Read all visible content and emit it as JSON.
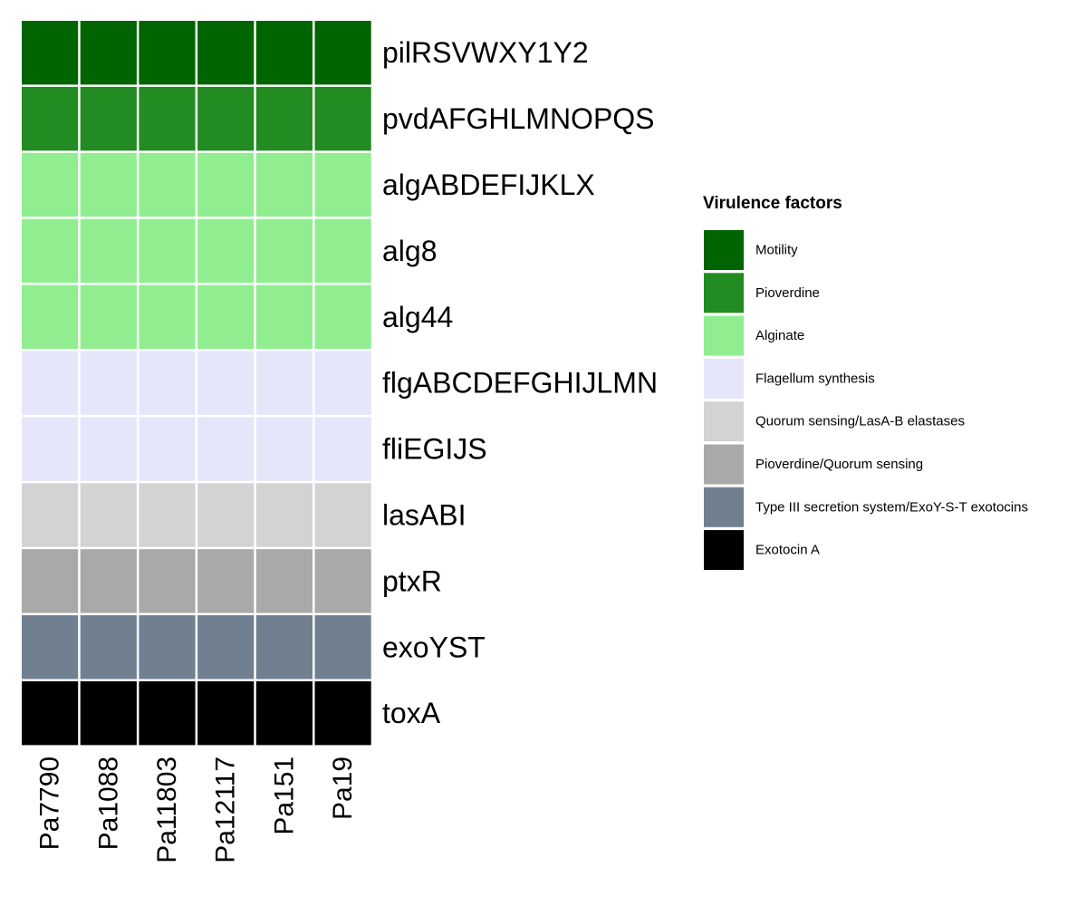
{
  "chart_data": {
    "type": "heatmap",
    "rows": [
      "pilRSVWXY1Y2",
      "pvdAFGHLMNOPQS",
      "algABDEFIJKLX",
      "alg8",
      "alg44",
      "flgABCDEFGHIJLMN",
      "fliEGIJS",
      "lasABI",
      "ptxR",
      "exoYST",
      "toxA"
    ],
    "columns": [
      "Pa7790",
      "Pa1088",
      "Pa11803",
      "Pa12117",
      "Pa151",
      "Pa19"
    ],
    "values": [
      [
        "Motility",
        "Motility",
        "Motility",
        "Motility",
        "Motility",
        "Motility"
      ],
      [
        "Pioverdine",
        "Pioverdine",
        "Pioverdine",
        "Pioverdine",
        "Pioverdine",
        "Pioverdine"
      ],
      [
        "Alginate",
        "Alginate",
        "Alginate",
        "Alginate",
        "Alginate",
        "Alginate"
      ],
      [
        "Alginate",
        "Alginate",
        "Alginate",
        "Alginate",
        "Alginate",
        "Alginate"
      ],
      [
        "Alginate",
        "Alginate",
        "Alginate",
        "Alginate",
        "Alginate",
        "Alginate"
      ],
      [
        "Flagellum synthesis",
        "Flagellum synthesis",
        "Flagellum synthesis",
        "Flagellum synthesis",
        "Flagellum synthesis",
        "Flagellum synthesis"
      ],
      [
        "Flagellum synthesis",
        "Flagellum synthesis",
        "Flagellum synthesis",
        "Flagellum synthesis",
        "Flagellum synthesis",
        "Flagellum synthesis"
      ],
      [
        "Quorum sensing/LasA-B elastases",
        "Quorum sensing/LasA-B elastases",
        "Quorum sensing/LasA-B elastases",
        "Quorum sensing/LasA-B elastases",
        "Quorum sensing/LasA-B elastases",
        "Quorum sensing/LasA-B elastases"
      ],
      [
        "Pioverdine/Quorum sensing",
        "Pioverdine/Quorum sensing",
        "Pioverdine/Quorum sensing",
        "Pioverdine/Quorum sensing",
        "Pioverdine/Quorum sensing",
        "Pioverdine/Quorum sensing"
      ],
      [
        "Type III secretion system/ExoY-S-T exotocins",
        "Type III secretion system/ExoY-S-T exotocins",
        "Type III secretion system/ExoY-S-T exotocins",
        "Type III secretion system/ExoY-S-T exotocins",
        "Type III secretion system/ExoY-S-T exotocins",
        "Type III secretion system/ExoY-S-T exotocins"
      ],
      [
        "Exotocin A",
        "Exotocin A",
        "Exotocin A",
        "Exotocin A",
        "Exotocin A",
        "Exotocin A"
      ]
    ],
    "legend": {
      "title": "Virulence factors",
      "position": "right",
      "items": [
        {
          "label": "Motility",
          "color": "#006400"
        },
        {
          "label": "Pioverdine",
          "color": "#228b22"
        },
        {
          "label": "Alginate",
          "color": "#90ee90"
        },
        {
          "label": "Flagellum synthesis",
          "color": "#e6e6fa"
        },
        {
          "label": "Quorum sensing/LasA-B elastases",
          "color": "#d3d3d3"
        },
        {
          "label": "Pioverdine/Quorum sensing",
          "color": "#a9a9a9"
        },
        {
          "label": "Type III secretion system/ExoY-S-T exotocins",
          "color": "#708090"
        },
        {
          "label": "Exotocin A",
          "color": "#000000"
        }
      ]
    },
    "cell_border_color": "#ffffff",
    "grid": false
  }
}
